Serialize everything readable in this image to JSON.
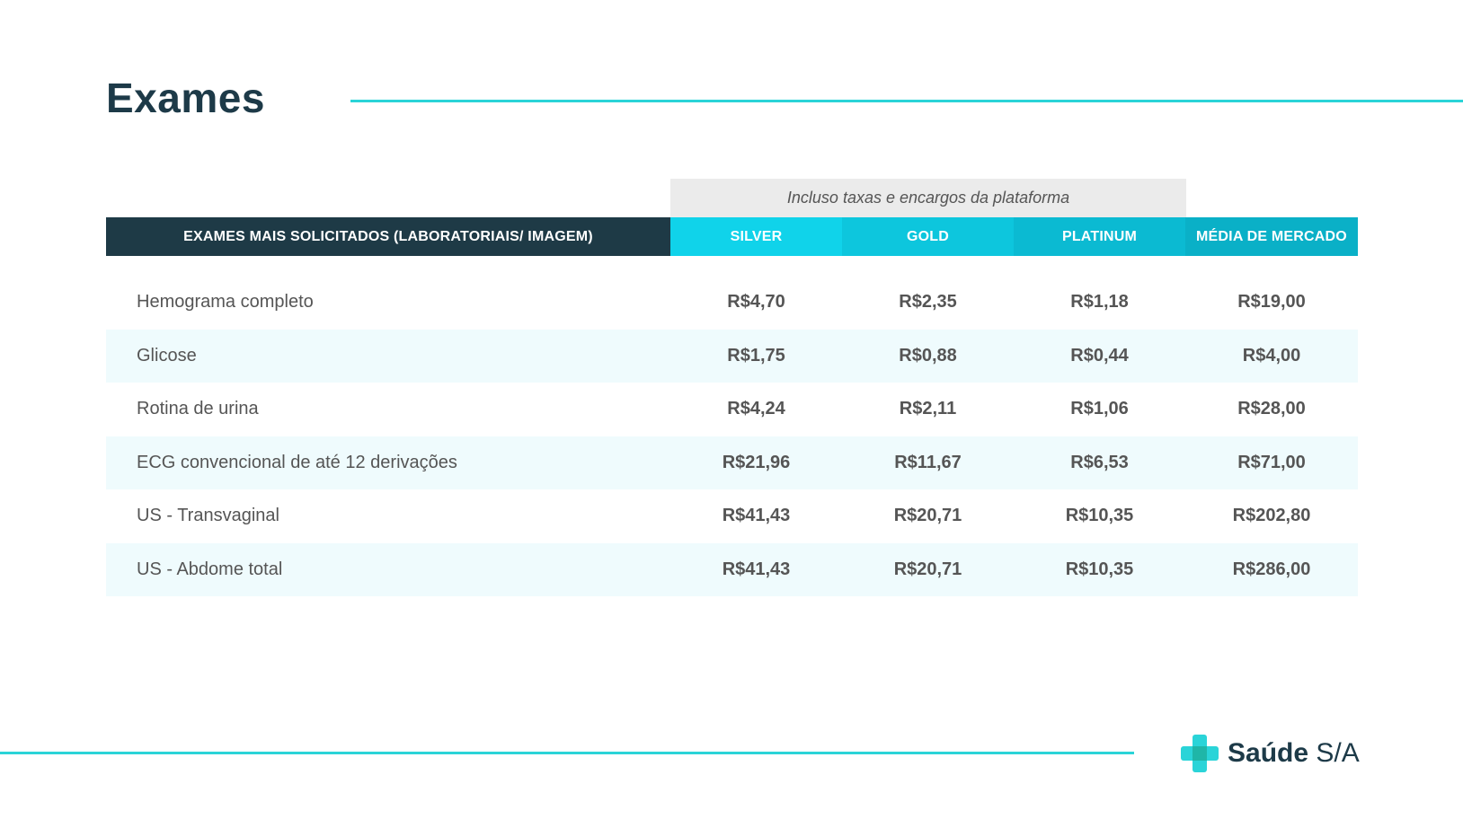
{
  "title": "Exames",
  "note": "Incluso taxas e encargos da plataforma",
  "table": {
    "headers": [
      "EXAMES MAIS SOLICITADOS (LABORATORIAIS/ IMAGEM)",
      "SILVER",
      "GOLD",
      "PLATINUM",
      "MÉDIA DE MERCADO"
    ],
    "rows": [
      {
        "name": "Hemograma completo",
        "values": [
          "R$4,70",
          "R$2,35",
          "R$1,18",
          "R$19,00"
        ]
      },
      {
        "name": "Glicose",
        "values": [
          "R$1,75",
          "R$0,88",
          "R$0,44",
          "R$4,00"
        ]
      },
      {
        "name": "Rotina de urina",
        "values": [
          "R$4,24",
          "R$2,11",
          "R$1,06",
          "R$28,00"
        ]
      },
      {
        "name": "ECG convencional de até 12 derivações",
        "values": [
          "R$21,96",
          "R$11,67",
          "R$6,53",
          "R$71,00"
        ]
      },
      {
        "name": "US - Transvaginal",
        "values": [
          "R$41,43",
          "R$20,71",
          "R$10,35",
          "R$202,80"
        ]
      },
      {
        "name": "US - Abdome total",
        "values": [
          "R$41,43",
          "R$20,71",
          "R$10,35",
          "R$286,00"
        ]
      }
    ]
  },
  "logo": {
    "icon": "plus-cross-icon",
    "bold_text": "Saúde",
    "light_text": " S/A"
  },
  "colors": {
    "dark_navy": "#1e3a46",
    "accent_cyan": "#2ad4d8",
    "silver": "#10d3ea",
    "gold": "#0dc6dd",
    "platinum": "#0bbad2",
    "media": "#0ab0c7",
    "alt_row": "#effbfd"
  }
}
